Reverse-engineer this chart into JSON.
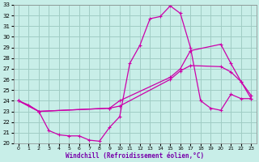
{
  "xlabel": "Windchill (Refroidissement éolien,°C)",
  "xlim": [
    -0.5,
    23.5
  ],
  "ylim": [
    20,
    33
  ],
  "xticks": [
    0,
    1,
    2,
    3,
    4,
    5,
    6,
    7,
    8,
    9,
    10,
    11,
    12,
    13,
    14,
    15,
    16,
    17,
    18,
    19,
    20,
    21,
    22,
    23
  ],
  "yticks": [
    20,
    21,
    22,
    23,
    24,
    25,
    26,
    27,
    28,
    29,
    30,
    31,
    32,
    33
  ],
  "bg_color": "#c8eee8",
  "grid_color": "#a0ccc4",
  "line_color": "#cc00aa",
  "line1_x": [
    0,
    1,
    2,
    3,
    4,
    5,
    6,
    7,
    8,
    9,
    10,
    11,
    12,
    13,
    14,
    15,
    16,
    17,
    18,
    19,
    20,
    21,
    22,
    23
  ],
  "line1_y": [
    24.0,
    23.6,
    23.0,
    21.2,
    20.8,
    20.7,
    20.7,
    20.3,
    20.2,
    21.5,
    22.5,
    27.5,
    29.2,
    31.7,
    31.9,
    32.9,
    32.2,
    29.0,
    24.0,
    23.3,
    23.1,
    24.6,
    24.2,
    24.2
  ],
  "line2_x": [
    0,
    2,
    9,
    10,
    15,
    16,
    17,
    20,
    21,
    22,
    23
  ],
  "line2_y": [
    24.0,
    23.0,
    23.3,
    23.5,
    26.0,
    26.8,
    27.3,
    27.2,
    26.7,
    25.8,
    24.2
  ],
  "line3_x": [
    0,
    2,
    9,
    10,
    15,
    16,
    17,
    20,
    21,
    22,
    23
  ],
  "line3_y": [
    24.0,
    23.0,
    23.3,
    24.0,
    26.2,
    27.0,
    28.7,
    29.3,
    27.5,
    25.8,
    24.5
  ]
}
